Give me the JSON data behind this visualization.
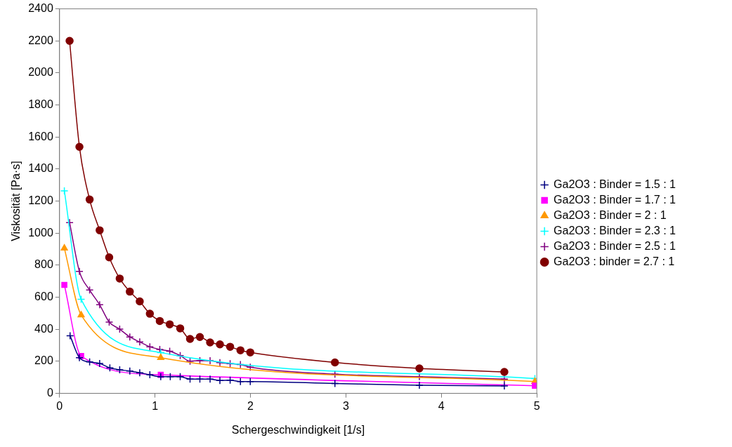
{
  "chart_data": {
    "type": "line",
    "xlabel": "Schergeschwindigkeit [1/s]",
    "ylabel": "Viskosität [Pa·s]",
    "xlim": [
      0,
      5
    ],
    "xticks": [
      0,
      1,
      2,
      3,
      4,
      5
    ],
    "ylim": [
      0,
      2400
    ],
    "yticks": [
      0,
      200,
      400,
      600,
      800,
      1000,
      1200,
      1400,
      1600,
      1800,
      2000,
      2200,
      2400
    ],
    "grid": false,
    "legend": "right",
    "series": [
      {
        "name": "Ga2O3 : Binder = 1.5 : 1",
        "color": "#000080",
        "marker": "cross",
        "x": [
          0.11,
          0.208,
          0.315,
          0.42,
          0.527,
          0.63,
          0.736,
          0.84,
          0.946,
          1.06,
          1.16,
          1.264,
          1.367,
          1.47,
          1.577,
          1.68,
          1.787,
          1.895,
          1.998,
          2.885,
          3.77,
          4.66
        ],
        "values": [
          360,
          223,
          196,
          187,
          159,
          147,
          140,
          129,
          116,
          104,
          104,
          104,
          89,
          89,
          89,
          80,
          83,
          74,
          74,
          62,
          51,
          46
        ]
      },
      {
        "name": "Ga2O3 : Binder = 1.7 : 1",
        "color": "#ff00ff",
        "marker": "square",
        "x": [
          0.05,
          0.226,
          1.06,
          4.98
        ],
        "values": [
          677,
          233,
          116,
          48
        ]
      },
      {
        "name": "Ga2O3 : Binder = 2 : 1",
        "color": "#ff9900",
        "marker": "triangle",
        "x": [
          0.05,
          0.226,
          1.06,
          4.98
        ],
        "values": [
          906,
          489,
          223,
          74
        ]
      },
      {
        "name": "Ga2O3 : Binder = 2.3 : 1",
        "color": "#00ffff",
        "marker": "cross",
        "x": [
          0.05,
          0.226,
          1.06,
          4.98
        ],
        "values": [
          1264,
          587,
          255,
          92
        ]
      },
      {
        "name": "Ga2O3 : Binder = 2.5 : 1",
        "color": "#800080",
        "marker": "cross",
        "x": [
          0.105,
          0.208,
          0.315,
          0.42,
          0.52,
          0.63,
          0.736,
          0.84,
          0.946,
          1.05,
          1.154,
          1.264,
          1.367,
          1.47,
          1.577,
          1.68,
          1.787,
          1.895,
          1.998,
          2.885,
          3.77,
          4.66
        ],
        "values": [
          1066,
          761,
          645,
          553,
          445,
          401,
          352,
          321,
          291,
          274,
          263,
          236,
          201,
          204,
          204,
          192,
          186,
          180,
          164,
          120,
          104,
          89
        ]
      },
      {
        "name": "Ga2O3 : binder = 2.7 : 1",
        "color": "#800000",
        "marker": "circle",
        "x": [
          0.105,
          0.208,
          0.315,
          0.42,
          0.52,
          0.63,
          0.736,
          0.84,
          0.946,
          1.05,
          1.154,
          1.264,
          1.367,
          1.47,
          1.577,
          1.68,
          1.787,
          1.895,
          1.998,
          2.885,
          3.77,
          4.66
        ],
        "values": [
          2200,
          1539,
          1210,
          1018,
          849,
          717,
          635,
          574,
          497,
          452,
          431,
          406,
          340,
          352,
          318,
          306,
          291,
          269,
          256,
          193,
          156,
          134
        ]
      }
    ]
  }
}
